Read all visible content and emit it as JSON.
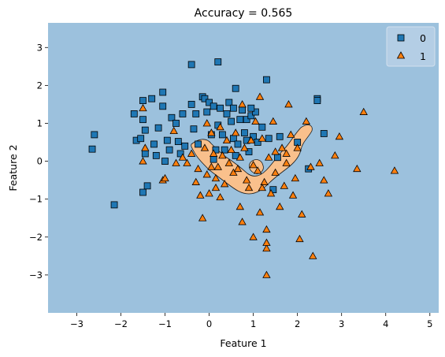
{
  "chart_data": {
    "type": "scatter",
    "title": "Accuracy = 0.565",
    "xlabel": "Feature 1",
    "ylabel": "Feature 2",
    "xlim": [
      -3.65,
      5.2
    ],
    "ylim": [
      -4.0,
      3.65
    ],
    "xticks": [
      "-3",
      "-2",
      "-1",
      "0",
      "1",
      "2",
      "3",
      "4",
      "5"
    ],
    "yticks": [
      "-3",
      "-2",
      "-1",
      "0",
      "1",
      "2",
      "3"
    ],
    "grid": false,
    "legend_position": "top-right",
    "background_region_color": "#9cc1dd",
    "region_1_color": "#f9c08c",
    "series": [
      {
        "name": "0",
        "marker": "square",
        "color": "#1f77b4",
        "points": [
          [
            -2.6,
            0.7
          ],
          [
            -2.65,
            0.32
          ],
          [
            -2.15,
            -1.15
          ],
          [
            -1.7,
            1.25
          ],
          [
            -1.65,
            0.55
          ],
          [
            -1.55,
            0.6
          ],
          [
            -1.5,
            1.6
          ],
          [
            -1.5,
            1.1
          ],
          [
            -1.45,
            0.82
          ],
          [
            -1.45,
            0.2
          ],
          [
            -1.5,
            -0.82
          ],
          [
            -1.4,
            -0.65
          ],
          [
            -1.3,
            1.65
          ],
          [
            -1.25,
            0.45
          ],
          [
            -1.2,
            0.15
          ],
          [
            -1.15,
            0.88
          ],
          [
            -1.05,
            1.82
          ],
          [
            -1.0,
            0.0
          ],
          [
            -1.05,
            1.45
          ],
          [
            -0.95,
            0.55
          ],
          [
            -0.9,
            0.3
          ],
          [
            -0.85,
            1.15
          ],
          [
            -0.7,
            0.52
          ],
          [
            -0.65,
            0.2
          ],
          [
            -0.6,
            1.25
          ],
          [
            -0.55,
            0.4
          ],
          [
            -0.4,
            2.55
          ],
          [
            -0.4,
            1.5
          ],
          [
            -0.35,
            0.85
          ],
          [
            -0.3,
            1.25
          ],
          [
            -0.25,
            0.45
          ],
          [
            -0.15,
            1.7
          ],
          [
            -0.1,
            1.65
          ],
          [
            -0.05,
            1.3
          ],
          [
            0.0,
            1.55
          ],
          [
            0.05,
            0.7
          ],
          [
            0.1,
            1.45
          ],
          [
            0.15,
            0.3
          ],
          [
            0.2,
            2.62
          ],
          [
            0.2,
            0.95
          ],
          [
            0.25,
            1.4
          ],
          [
            0.3,
            0.7
          ],
          [
            0.35,
            0.3
          ],
          [
            0.4,
            1.25
          ],
          [
            0.45,
            1.55
          ],
          [
            0.5,
            1.05
          ],
          [
            0.55,
            1.4
          ],
          [
            0.55,
            0.6
          ],
          [
            0.6,
            1.92
          ],
          [
            0.65,
            0.45
          ],
          [
            0.7,
            1.1
          ],
          [
            0.75,
            1.35
          ],
          [
            0.8,
            0.75
          ],
          [
            0.85,
            1.1
          ],
          [
            0.9,
            0.25
          ],
          [
            0.95,
            1.2
          ],
          [
            1.0,
            0.65
          ],
          [
            1.05,
            1.3
          ],
          [
            1.1,
            0.5
          ],
          [
            1.2,
            0.9
          ],
          [
            1.3,
            2.15
          ],
          [
            1.35,
            0.6
          ],
          [
            1.45,
            -0.75
          ],
          [
            1.6,
            0.65
          ],
          [
            2.0,
            0.5
          ],
          [
            2.25,
            -0.2
          ],
          [
            2.45,
            1.65
          ],
          [
            2.45,
            1.6
          ],
          [
            2.6,
            0.73
          ],
          [
            0.6,
            0.15
          ],
          [
            0.85,
            0.55
          ],
          [
            1.55,
            0.1
          ],
          [
            -0.75,
            1.0
          ],
          [
            0.1,
            0.05
          ],
          [
            0.95,
            1.4
          ]
        ]
      },
      {
        "name": "1",
        "marker": "triangle",
        "color": "#ff7f0e",
        "points": [
          [
            -1.5,
            1.4
          ],
          [
            -1.45,
            0.35
          ],
          [
            -1.5,
            0.0
          ],
          [
            -1.05,
            -0.5
          ],
          [
            -1.0,
            -0.45
          ],
          [
            -0.8,
            0.8
          ],
          [
            -0.75,
            -0.05
          ],
          [
            -0.6,
            0.1
          ],
          [
            -0.5,
            -0.05
          ],
          [
            -0.4,
            0.2
          ],
          [
            -0.3,
            -0.55
          ],
          [
            -0.25,
            -0.2
          ],
          [
            -0.2,
            -0.9
          ],
          [
            -0.15,
            -1.5
          ],
          [
            -0.1,
            0.35
          ],
          [
            -0.05,
            1.0
          ],
          [
            -0.05,
            -0.35
          ],
          [
            0.0,
            -0.85
          ],
          [
            0.05,
            0.75
          ],
          [
            0.05,
            -0.15
          ],
          [
            0.1,
            0.2
          ],
          [
            0.15,
            -0.45
          ],
          [
            0.2,
            -0.15
          ],
          [
            0.25,
            0.9
          ],
          [
            0.25,
            -0.95
          ],
          [
            0.3,
            0.15
          ],
          [
            0.35,
            -0.6
          ],
          [
            0.4,
            0.55
          ],
          [
            0.45,
            -0.05
          ],
          [
            0.5,
            0.3
          ],
          [
            0.55,
            -0.3
          ],
          [
            0.6,
            0.75
          ],
          [
            0.65,
            -0.2
          ],
          [
            0.7,
            -1.2
          ],
          [
            0.75,
            1.5
          ],
          [
            0.75,
            -1.6
          ],
          [
            0.8,
            0.35
          ],
          [
            0.85,
            -0.5
          ],
          [
            0.9,
            -0.7
          ],
          [
            0.95,
            0.55
          ],
          [
            1.0,
            -0.1
          ],
          [
            1.0,
            -2.0
          ],
          [
            1.05,
            1.05
          ],
          [
            1.1,
            -0.25
          ],
          [
            1.15,
            1.7
          ],
          [
            1.15,
            -1.35
          ],
          [
            1.2,
            0.6
          ],
          [
            1.25,
            -0.55
          ],
          [
            1.3,
            -1.8
          ],
          [
            1.3,
            -2.3
          ],
          [
            1.35,
            0.1
          ],
          [
            1.4,
            -0.85
          ],
          [
            1.45,
            1.05
          ],
          [
            1.5,
            -0.3
          ],
          [
            1.6,
            -1.2
          ],
          [
            1.65,
            0.35
          ],
          [
            1.7,
            -0.65
          ],
          [
            1.75,
            -0.05
          ],
          [
            1.8,
            1.5
          ],
          [
            1.85,
            0.7
          ],
          [
            1.9,
            -0.9
          ],
          [
            1.95,
            -0.45
          ],
          [
            2.0,
            0.35
          ],
          [
            2.05,
            -2.05
          ],
          [
            2.1,
            -1.4
          ],
          [
            2.2,
            1.05
          ],
          [
            2.3,
            -0.15
          ],
          [
            2.35,
            -2.5
          ],
          [
            2.5,
            -0.05
          ],
          [
            2.6,
            -0.5
          ],
          [
            2.7,
            -0.85
          ],
          [
            2.85,
            0.15
          ],
          [
            2.95,
            0.65
          ],
          [
            3.35,
            -0.2
          ],
          [
            3.5,
            1.3
          ],
          [
            4.2,
            -0.25
          ],
          [
            1.3,
            -3.0
          ],
          [
            1.3,
            -2.15
          ],
          [
            0.15,
            -0.7
          ],
          [
            0.7,
            0.1
          ],
          [
            1.5,
            0.25
          ],
          [
            1.75,
            0.2
          ],
          [
            1.2,
            -0.7
          ]
        ]
      }
    ]
  }
}
